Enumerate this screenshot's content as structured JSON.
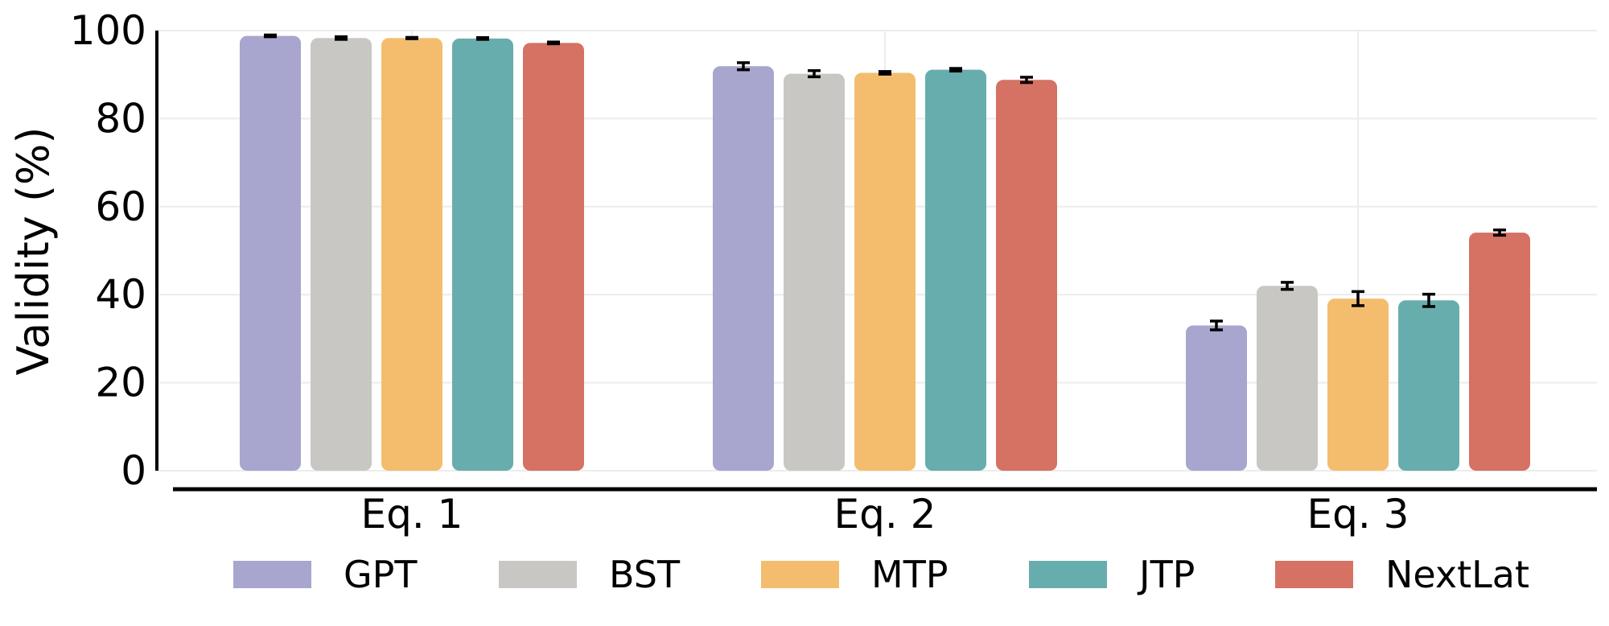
{
  "chart_data": {
    "type": "bar",
    "categories": [
      "Eq. 1",
      "Eq. 2",
      "Eq. 3"
    ],
    "series": [
      {
        "name": "GPT",
        "color": "#a8a5cf",
        "values": [
          98.8,
          91.9,
          33.0
        ],
        "errors": [
          0.2,
          0.8,
          1.0
        ]
      },
      {
        "name": "BST",
        "color": "#c8c7c3",
        "values": [
          98.3,
          90.2,
          42.0
        ],
        "errors": [
          0.3,
          0.7,
          0.8
        ]
      },
      {
        "name": "MTP",
        "color": "#f4bd6e",
        "values": [
          98.3,
          90.4,
          39.1
        ],
        "errors": [
          0.15,
          0.3,
          1.6
        ]
      },
      {
        "name": "JTP",
        "color": "#68adad",
        "values": [
          98.2,
          91.1,
          38.7
        ],
        "errors": [
          0.2,
          0.3,
          1.4
        ]
      },
      {
        "name": "NextLat",
        "color": "#d57263",
        "values": [
          97.2,
          88.8,
          54.1
        ],
        "errors": [
          0.2,
          0.6,
          0.6
        ]
      }
    ],
    "ylabel": "Validity (%)",
    "xlabel": "",
    "ylim": [
      0,
      100
    ],
    "yticks": [
      0,
      20,
      40,
      60,
      80,
      100
    ],
    "grid": true,
    "legend_position": "bottom"
  }
}
